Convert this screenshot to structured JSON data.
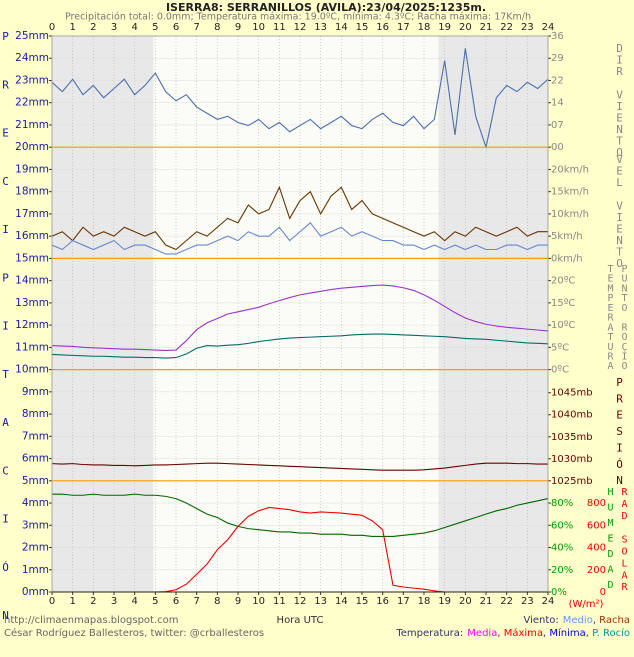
{
  "chart_data": {
    "type": "line",
    "title": "ISERRA8: SERRANILLOS (AVILA):23/04/2025:1235m.",
    "subtitle": "Precipitación total: 0.0mm; Temperatura máxima: 19.0ºC, mínima: 4.3ºC; Racha máxima: 17Km/h",
    "xlabel": "Hora UTC",
    "xlim": [
      0,
      24
    ],
    "xticks": [
      0,
      1,
      2,
      3,
      4,
      5,
      6,
      7,
      8,
      9,
      10,
      11,
      12,
      13,
      14,
      15,
      16,
      17,
      18,
      19,
      20,
      21,
      22,
      23,
      24
    ],
    "x": [
      0,
      0.5,
      1,
      1.5,
      2,
      2.5,
      3,
      3.5,
      4,
      4.5,
      5,
      5.5,
      6,
      6.5,
      7,
      7.5,
      8,
      8.5,
      9,
      9.5,
      10,
      10.5,
      11,
      11.5,
      12,
      12.5,
      13,
      13.5,
      14,
      14.5,
      15,
      15.5,
      16,
      16.5,
      17,
      17.5,
      18,
      18.5,
      19,
      19.5,
      20,
      20.5,
      21,
      21.5,
      22,
      22.5,
      23,
      23.5,
      24
    ],
    "shaded_hours": [
      [
        0,
        4.9
      ],
      [
        18.7,
        24
      ]
    ],
    "grid": true,
    "left_axis": {
      "label": "PRECIPITACIÓN",
      "color": "#1a1aa0",
      "ylim": [
        0,
        25
      ],
      "yticks": [
        {
          "value": 0,
          "label": "0mm"
        },
        {
          "value": 1,
          "label": "1mm"
        },
        {
          "value": 2,
          "label": "2mm"
        },
        {
          "value": 3,
          "label": "3mm"
        },
        {
          "value": 4,
          "label": "4mm"
        },
        {
          "value": 5,
          "label": "5mm"
        },
        {
          "value": 6,
          "label": "6mm"
        },
        {
          "value": 7,
          "label": "7mm"
        },
        {
          "value": 8,
          "label": "8mm"
        },
        {
          "value": 9,
          "label": "9mm"
        },
        {
          "value": 10,
          "label": "10mm"
        },
        {
          "value": 11,
          "label": "11mm"
        },
        {
          "value": 12,
          "label": "12mm"
        },
        {
          "value": 13,
          "label": "13mm"
        },
        {
          "value": 14,
          "label": "14mm"
        },
        {
          "value": 15,
          "label": "15mm"
        },
        {
          "value": 16,
          "label": "16mm"
        },
        {
          "value": 17,
          "label": "17mm"
        },
        {
          "value": 18,
          "label": "18mm"
        },
        {
          "value": 19,
          "label": "19mm"
        },
        {
          "value": 20,
          "label": "20mm"
        },
        {
          "value": 21,
          "label": "21mm"
        },
        {
          "value": 22,
          "label": "22mm"
        },
        {
          "value": 23,
          "label": "23mm"
        },
        {
          "value": 24,
          "label": "24mm"
        },
        {
          "value": 25,
          "label": "25mm"
        }
      ]
    },
    "panels": [
      {
        "ylabels": [
          "DIR VIENTO"
        ],
        "ycolor": "#888888",
        "ylim": [
          0,
          36
        ],
        "yticks": [
          {
            "value": 0,
            "label": "00"
          },
          {
            "value": 7.2,
            "label": "07"
          },
          {
            "value": 14.4,
            "label": "14"
          },
          {
            "value": 21.6,
            "label": "22"
          },
          {
            "value": 28.8,
            "label": "29"
          },
          36
        ],
        "series": [
          {
            "color": "#4a6fb0",
            "values": [
              21,
              18,
              22,
              17,
              20,
              16,
              19,
              22,
              17,
              20,
              24,
              18,
              15,
              17,
              13,
              11,
              9,
              10,
              8,
              7,
              9,
              6,
              8,
              5,
              7,
              9,
              6,
              8,
              10,
              7,
              6,
              9,
              11,
              8,
              7,
              10,
              6,
              9,
              28,
              4,
              32,
              10,
              0,
              16,
              20,
              18,
              21,
              19,
              22
            ]
          }
        ]
      },
      {
        "ylabels": [
          "VEL VIENTO"
        ],
        "ycolor": "#888888",
        "ylim": [
          0,
          25
        ],
        "yticks": [
          {
            "value": 0,
            "label": "0km/h"
          },
          {
            "value": 5,
            "label": "5km/h"
          },
          {
            "value": 10,
            "label": "10km/h"
          },
          {
            "value": 15,
            "label": "15km/h"
          },
          {
            "value": 20,
            "label": "20km/h"
          }
        ],
        "series": [
          {
            "color": "#663300",
            "values": [
              5,
              6,
              4,
              7,
              5,
              6,
              5,
              7,
              6,
              5,
              6,
              3,
              2,
              4,
              6,
              5,
              7,
              9,
              8,
              12,
              10,
              11,
              16,
              9,
              13,
              15,
              10,
              14,
              16,
              11,
              13,
              10,
              9,
              8,
              7,
              6,
              5,
              6,
              4,
              6,
              5,
              7,
              6,
              5,
              6,
              7,
              5,
              6,
              6
            ]
          },
          {
            "color": "#6688cc",
            "values": [
              3,
              2,
              4,
              3,
              2,
              3,
              4,
              2,
              3,
              3,
              2,
              1,
              1,
              2,
              3,
              3,
              4,
              5,
              4,
              6,
              5,
              5,
              7,
              4,
              6,
              8,
              5,
              6,
              7,
              5,
              6,
              5,
              4,
              4,
              3,
              3,
              2,
              3,
              2,
              3,
              2,
              3,
              2,
              2,
              3,
              3,
              2,
              3,
              3
            ]
          }
        ]
      },
      {
        "ylabels": [
          "TEMPERATURA",
          "PUNTO ROCÍO"
        ],
        "ycolor": "#888888",
        "ylim": [
          0,
          25
        ],
        "yticks": [
          {
            "value": 0,
            "label": "0ºC"
          },
          {
            "value": 5,
            "label": "5ºC"
          },
          {
            "value": 10,
            "label": "10ºC"
          },
          {
            "value": 15,
            "label": "15ºC"
          },
          {
            "value": 20,
            "label": "20ºC"
          }
        ],
        "series": [
          {
            "color": "#9933cc",
            "values": [
              5.4,
              5.3,
              5.2,
              5.0,
              4.9,
              4.8,
              4.7,
              4.6,
              4.6,
              4.5,
              4.4,
              4.3,
              4.4,
              6.5,
              9.0,
              10.5,
              11.5,
              12.5,
              13.0,
              13.5,
              14.0,
              14.8,
              15.5,
              16.2,
              16.8,
              17.2,
              17.6,
              18.0,
              18.3,
              18.5,
              18.7,
              18.9,
              19.0,
              18.8,
              18.4,
              17.8,
              16.8,
              15.6,
              14.2,
              12.8,
              11.6,
              10.8,
              10.2,
              9.8,
              9.5,
              9.3,
              9.1,
              8.9,
              8.7
            ]
          },
          {
            "color": "#006b6b",
            "values": [
              3.4,
              3.3,
              3.2,
              3.1,
              3.0,
              3.0,
              2.9,
              2.8,
              2.8,
              2.7,
              2.7,
              2.6,
              2.7,
              3.5,
              4.8,
              5.4,
              5.3,
              5.5,
              5.6,
              5.9,
              6.3,
              6.6,
              6.9,
              7.1,
              7.2,
              7.3,
              7.4,
              7.5,
              7.6,
              7.8,
              7.9,
              8.0,
              8.0,
              7.9,
              7.8,
              7.7,
              7.6,
              7.5,
              7.4,
              7.2,
              7.0,
              6.9,
              6.8,
              6.6,
              6.4,
              6.2,
              6.0,
              5.9,
              5.8
            ]
          }
        ]
      },
      {
        "ylabels": [
          "PRESIÓN"
        ],
        "ycolor": "#660000",
        "ylim": [
          1025,
          1050.25
        ],
        "yticks": [
          {
            "value": 1025,
            "label": "1025mb"
          },
          {
            "value": 1030,
            "label": "1030mb"
          },
          {
            "value": 1035,
            "label": "1035mb"
          },
          {
            "value": 1040,
            "label": "1040mb"
          },
          {
            "value": 1045,
            "label": "1045mb"
          }
        ],
        "series": [
          {
            "color": "#660000",
            "values": [
              1028.9,
              1028.8,
              1028.9,
              1028.7,
              1028.6,
              1028.6,
              1028.5,
              1028.5,
              1028.4,
              1028.5,
              1028.6,
              1028.6,
              1028.7,
              1028.8,
              1028.9,
              1029.0,
              1029.0,
              1028.9,
              1028.8,
              1028.7,
              1028.6,
              1028.5,
              1028.4,
              1028.3,
              1028.2,
              1028.1,
              1028.0,
              1027.9,
              1027.8,
              1027.7,
              1027.6,
              1027.5,
              1027.4,
              1027.4,
              1027.4,
              1027.4,
              1027.5,
              1027.7,
              1027.9,
              1028.2,
              1028.5,
              1028.8,
              1029.0,
              1029.0,
              1029.0,
              1028.9,
              1028.9,
              1028.8,
              1028.8
            ]
          }
        ]
      },
      {
        "ylabels": [
          "HUMEDAD"
        ],
        "ycolor": "#009900",
        "ylim": [
          0,
          100
        ],
        "yticks": [
          {
            "value": 0,
            "label": "0%"
          },
          {
            "value": 20,
            "label": "20%"
          },
          {
            "value": 40,
            "label": "40%"
          },
          {
            "value": 60,
            "label": "60%"
          },
          {
            "value": 80,
            "label": "80%"
          }
        ],
        "y2labels": [
          "RAD SOLAR"
        ],
        "y2color": "#ee0000",
        "y2lim": [
          0,
          1000
        ],
        "y2ticks": [
          0,
          200,
          400,
          600,
          800
        ],
        "y2unit": "(W/m²)",
        "series": [
          {
            "color": "#006600",
            "values": [
              88,
              88,
              87,
              87,
              88,
              87,
              87,
              87,
              88,
              87,
              87,
              86,
              84,
              80,
              75,
              70,
              67,
              62,
              59,
              57,
              56,
              55,
              54,
              54,
              53,
              53,
              52,
              52,
              52,
              51,
              51,
              50,
              50,
              50,
              51,
              52,
              53,
              55,
              58,
              61,
              64,
              67,
              70,
              73,
              75,
              78,
              80,
              82,
              84
            ]
          },
          {
            "color": "#ee0000",
            "axis": "y2",
            "values": [
              0,
              0,
              0,
              0,
              0,
              0,
              0,
              0,
              0,
              0,
              0,
              3,
              20,
              70,
              160,
              250,
              380,
              470,
              590,
              680,
              730,
              760,
              750,
              740,
              720,
              710,
              720,
              715,
              710,
              700,
              690,
              640,
              560,
              60,
              45,
              35,
              25,
              10,
              0,
              0,
              0,
              0,
              0,
              0,
              0,
              0,
              0,
              0,
              0
            ]
          }
        ]
      }
    ],
    "footer_url": "http://climaenmapas.blogspot.com",
    "footer_author": "César Rodríguez Ballesteros, twitter: @crballesteros",
    "legend_separator": ", ",
    "legends": [
      {
        "label": "Viento:",
        "items": [
          {
            "name": "Medio",
            "color": "#6699ff"
          },
          {
            "name": "Racha",
            "color": "#993300"
          }
        ]
      },
      {
        "label": "Temperatura:",
        "items": [
          {
            "name": "Media",
            "color": "#ff00ff"
          },
          {
            "name": "Máxima",
            "color": "#ff0000"
          },
          {
            "name": "Mínima",
            "color": "#0000ff"
          },
          {
            "name": "P. Rocío",
            "color": "#009999"
          }
        ]
      }
    ]
  }
}
